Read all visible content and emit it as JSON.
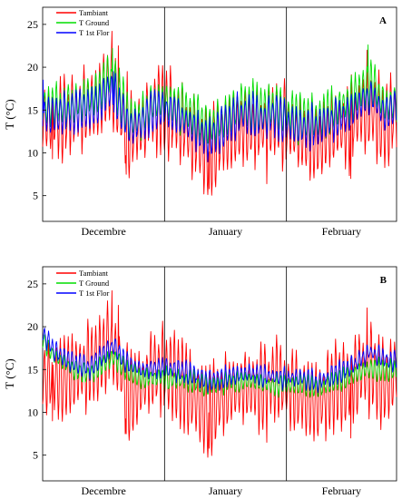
{
  "chart_data": [
    {
      "type": "line",
      "panel_label": "A",
      "ylabel": "T (°C)",
      "ylim": [
        2,
        27
      ],
      "yticks": [
        5,
        10,
        15,
        20,
        25
      ],
      "grid": false,
      "legend_position": "top-left",
      "categories": [
        "Decembre",
        "January",
        "February"
      ],
      "category_boundaries": [
        0,
        31,
        62,
        90
      ],
      "x_unit": "day",
      "series": [
        {
          "name": "Tambiant",
          "color": "#ff0000",
          "profile": [
            [
              0,
              14
            ],
            [
              5,
              14
            ],
            [
              10,
              15
            ],
            [
              14,
              16
            ],
            [
              17,
              18
            ],
            [
              19,
              16
            ],
            [
              22,
              12
            ],
            [
              25,
              13
            ],
            [
              28,
              15
            ],
            [
              31,
              15
            ],
            [
              34,
              14
            ],
            [
              38,
              12
            ],
            [
              42,
              10
            ],
            [
              46,
              12
            ],
            [
              50,
              13
            ],
            [
              53,
              13
            ],
            [
              56,
              13
            ],
            [
              59,
              14
            ],
            [
              62,
              13
            ],
            [
              66,
              12
            ],
            [
              70,
              11
            ],
            [
              74,
              13
            ],
            [
              78,
              13
            ],
            [
              81,
              15
            ],
            [
              84,
              15
            ],
            [
              87,
              13
            ],
            [
              90,
              15
            ]
          ],
          "amplitude": 4.2,
          "peaks": [
            [
              17.6,
              24.2
            ],
            [
              19.2,
              22.5
            ],
            [
              21.5,
              19.5
            ],
            [
              82.5,
              22.0
            ]
          ],
          "troughs": [
            [
              2.5,
              9.3
            ],
            [
              21.3,
              7.5
            ],
            [
              42.4,
              5.8
            ],
            [
              57,
              6.4
            ],
            [
              78.4,
              7.0
            ]
          ]
        },
        {
          "name": "T Ground",
          "color": "#00dd00",
          "profile": [
            [
              0,
              15.5
            ],
            [
              5,
              15.5
            ],
            [
              10,
              16
            ],
            [
              14,
              17
            ],
            [
              17,
              19
            ],
            [
              19,
              17.5
            ],
            [
              22,
              14
            ],
            [
              25,
              14
            ],
            [
              28,
              16
            ],
            [
              31,
              16
            ],
            [
              34,
              15.5
            ],
            [
              38,
              14.5
            ],
            [
              42,
              13
            ],
            [
              46,
              14
            ],
            [
              50,
              15.5
            ],
            [
              53,
              15.5
            ],
            [
              56,
              15
            ],
            [
              59,
              15.5
            ],
            [
              62,
              14.5
            ],
            [
              66,
              14
            ],
            [
              70,
              14
            ],
            [
              74,
              15
            ],
            [
              78,
              16
            ],
            [
              81,
              17.5
            ],
            [
              84,
              18
            ],
            [
              87,
              15.5
            ],
            [
              90,
              16
            ]
          ],
          "amplitude": 2.3,
          "peaks": [
            [
              17.8,
              22.2
            ],
            [
              82.8,
              22.6
            ]
          ],
          "troughs": []
        },
        {
          "name": "T 1st Flor",
          "color": "#0000ff",
          "profile": [
            [
              0,
              14.5
            ],
            [
              5,
              14.5
            ],
            [
              10,
              15
            ],
            [
              14,
              15.5
            ],
            [
              17,
              17.5
            ],
            [
              19,
              16
            ],
            [
              22,
              13
            ],
            [
              25,
              13.5
            ],
            [
              28,
              15
            ],
            [
              31,
              15
            ],
            [
              34,
              14.5
            ],
            [
              38,
              13
            ],
            [
              42,
              11.5
            ],
            [
              46,
              13
            ],
            [
              50,
              14.5
            ],
            [
              53,
              14.5
            ],
            [
              56,
              14
            ],
            [
              59,
              14.5
            ],
            [
              62,
              13.5
            ],
            [
              66,
              13
            ],
            [
              70,
              13
            ],
            [
              74,
              14
            ],
            [
              78,
              14.5
            ],
            [
              81,
              16
            ],
            [
              84,
              16.5
            ],
            [
              87,
              14.5
            ],
            [
              90,
              15.5
            ]
          ],
          "amplitude": 2.0,
          "peaks": [
            [
              0.1,
              18.5
            ],
            [
              18,
              19.5
            ]
          ],
          "troughs": []
        }
      ]
    },
    {
      "type": "line",
      "panel_label": "B",
      "ylabel": "T (°C)",
      "ylim": [
        2,
        27
      ],
      "yticks": [
        5,
        10,
        15,
        20,
        25
      ],
      "grid": false,
      "legend_position": "top-left",
      "categories": [
        "Decembre",
        "January",
        "February"
      ],
      "category_boundaries": [
        0,
        31,
        62,
        90
      ],
      "x_unit": "day",
      "series": [
        {
          "name": "Tambiant",
          "color": "#ff0000",
          "profile": [
            [
              0,
              14
            ],
            [
              5,
              14
            ],
            [
              10,
              15
            ],
            [
              14,
              16
            ],
            [
              17,
              18
            ],
            [
              19,
              16
            ],
            [
              22,
              12
            ],
            [
              25,
              13
            ],
            [
              28,
              15
            ],
            [
              31,
              15
            ],
            [
              34,
              14
            ],
            [
              38,
              12
            ],
            [
              42,
              10
            ],
            [
              46,
              12
            ],
            [
              50,
              13
            ],
            [
              53,
              13
            ],
            [
              56,
              13
            ],
            [
              59,
              14
            ],
            [
              62,
              13
            ],
            [
              66,
              12
            ],
            [
              70,
              11
            ],
            [
              74,
              13
            ],
            [
              78,
              13
            ],
            [
              81,
              15
            ],
            [
              84,
              15
            ],
            [
              87,
              13
            ],
            [
              90,
              15
            ]
          ],
          "amplitude": 4.2,
          "peaks": [
            [
              17.6,
              24.2
            ],
            [
              19.2,
              22.5
            ],
            [
              82.5,
              22.2
            ]
          ],
          "troughs": [
            [
              2.5,
              9.0
            ],
            [
              21.3,
              7.5
            ],
            [
              42.4,
              5.8
            ],
            [
              57,
              6.5
            ],
            [
              78.4,
              7.0
            ]
          ]
        },
        {
          "name": "T Ground",
          "color": "#00dd00",
          "profile": [
            [
              0,
              18.5
            ],
            [
              3,
              16.5
            ],
            [
              8,
              15
            ],
            [
              12,
              14.5
            ],
            [
              15,
              15.5
            ],
            [
              18,
              16.5
            ],
            [
              21,
              15
            ],
            [
              25,
              14
            ],
            [
              31,
              14
            ],
            [
              36,
              13.8
            ],
            [
              42,
              13
            ],
            [
              48,
              13.5
            ],
            [
              53,
              13.7
            ],
            [
              57,
              13.3
            ],
            [
              62,
              13.2
            ],
            [
              66,
              13.3
            ],
            [
              70,
              12.8
            ],
            [
              74,
              13.5
            ],
            [
              79,
              14.3
            ],
            [
              83,
              15.2
            ],
            [
              87,
              14.8
            ],
            [
              90,
              15
            ]
          ],
          "amplitude": 1.0,
          "peaks": [],
          "troughs": []
        },
        {
          "name": "T 1st Flor",
          "color": "#0000ff",
          "profile": [
            [
              0,
              19.2
            ],
            [
              3,
              17.2
            ],
            [
              8,
              15.8
            ],
            [
              12,
              15.2
            ],
            [
              15,
              16.5
            ],
            [
              18,
              17.8
            ],
            [
              21,
              16
            ],
            [
              25,
              15
            ],
            [
              31,
              15.2
            ],
            [
              36,
              14.8
            ],
            [
              42,
              13.7
            ],
            [
              48,
              14.2
            ],
            [
              53,
              14.6
            ],
            [
              57,
              14.2
            ],
            [
              62,
              14
            ],
            [
              66,
              14.1
            ],
            [
              70,
              13.5
            ],
            [
              74,
              14.4
            ],
            [
              79,
              15.5
            ],
            [
              83,
              17
            ],
            [
              87,
              16.2
            ],
            [
              90,
              16
            ]
          ],
          "amplitude": 1.0,
          "peaks": [],
          "troughs": []
        }
      ]
    }
  ]
}
